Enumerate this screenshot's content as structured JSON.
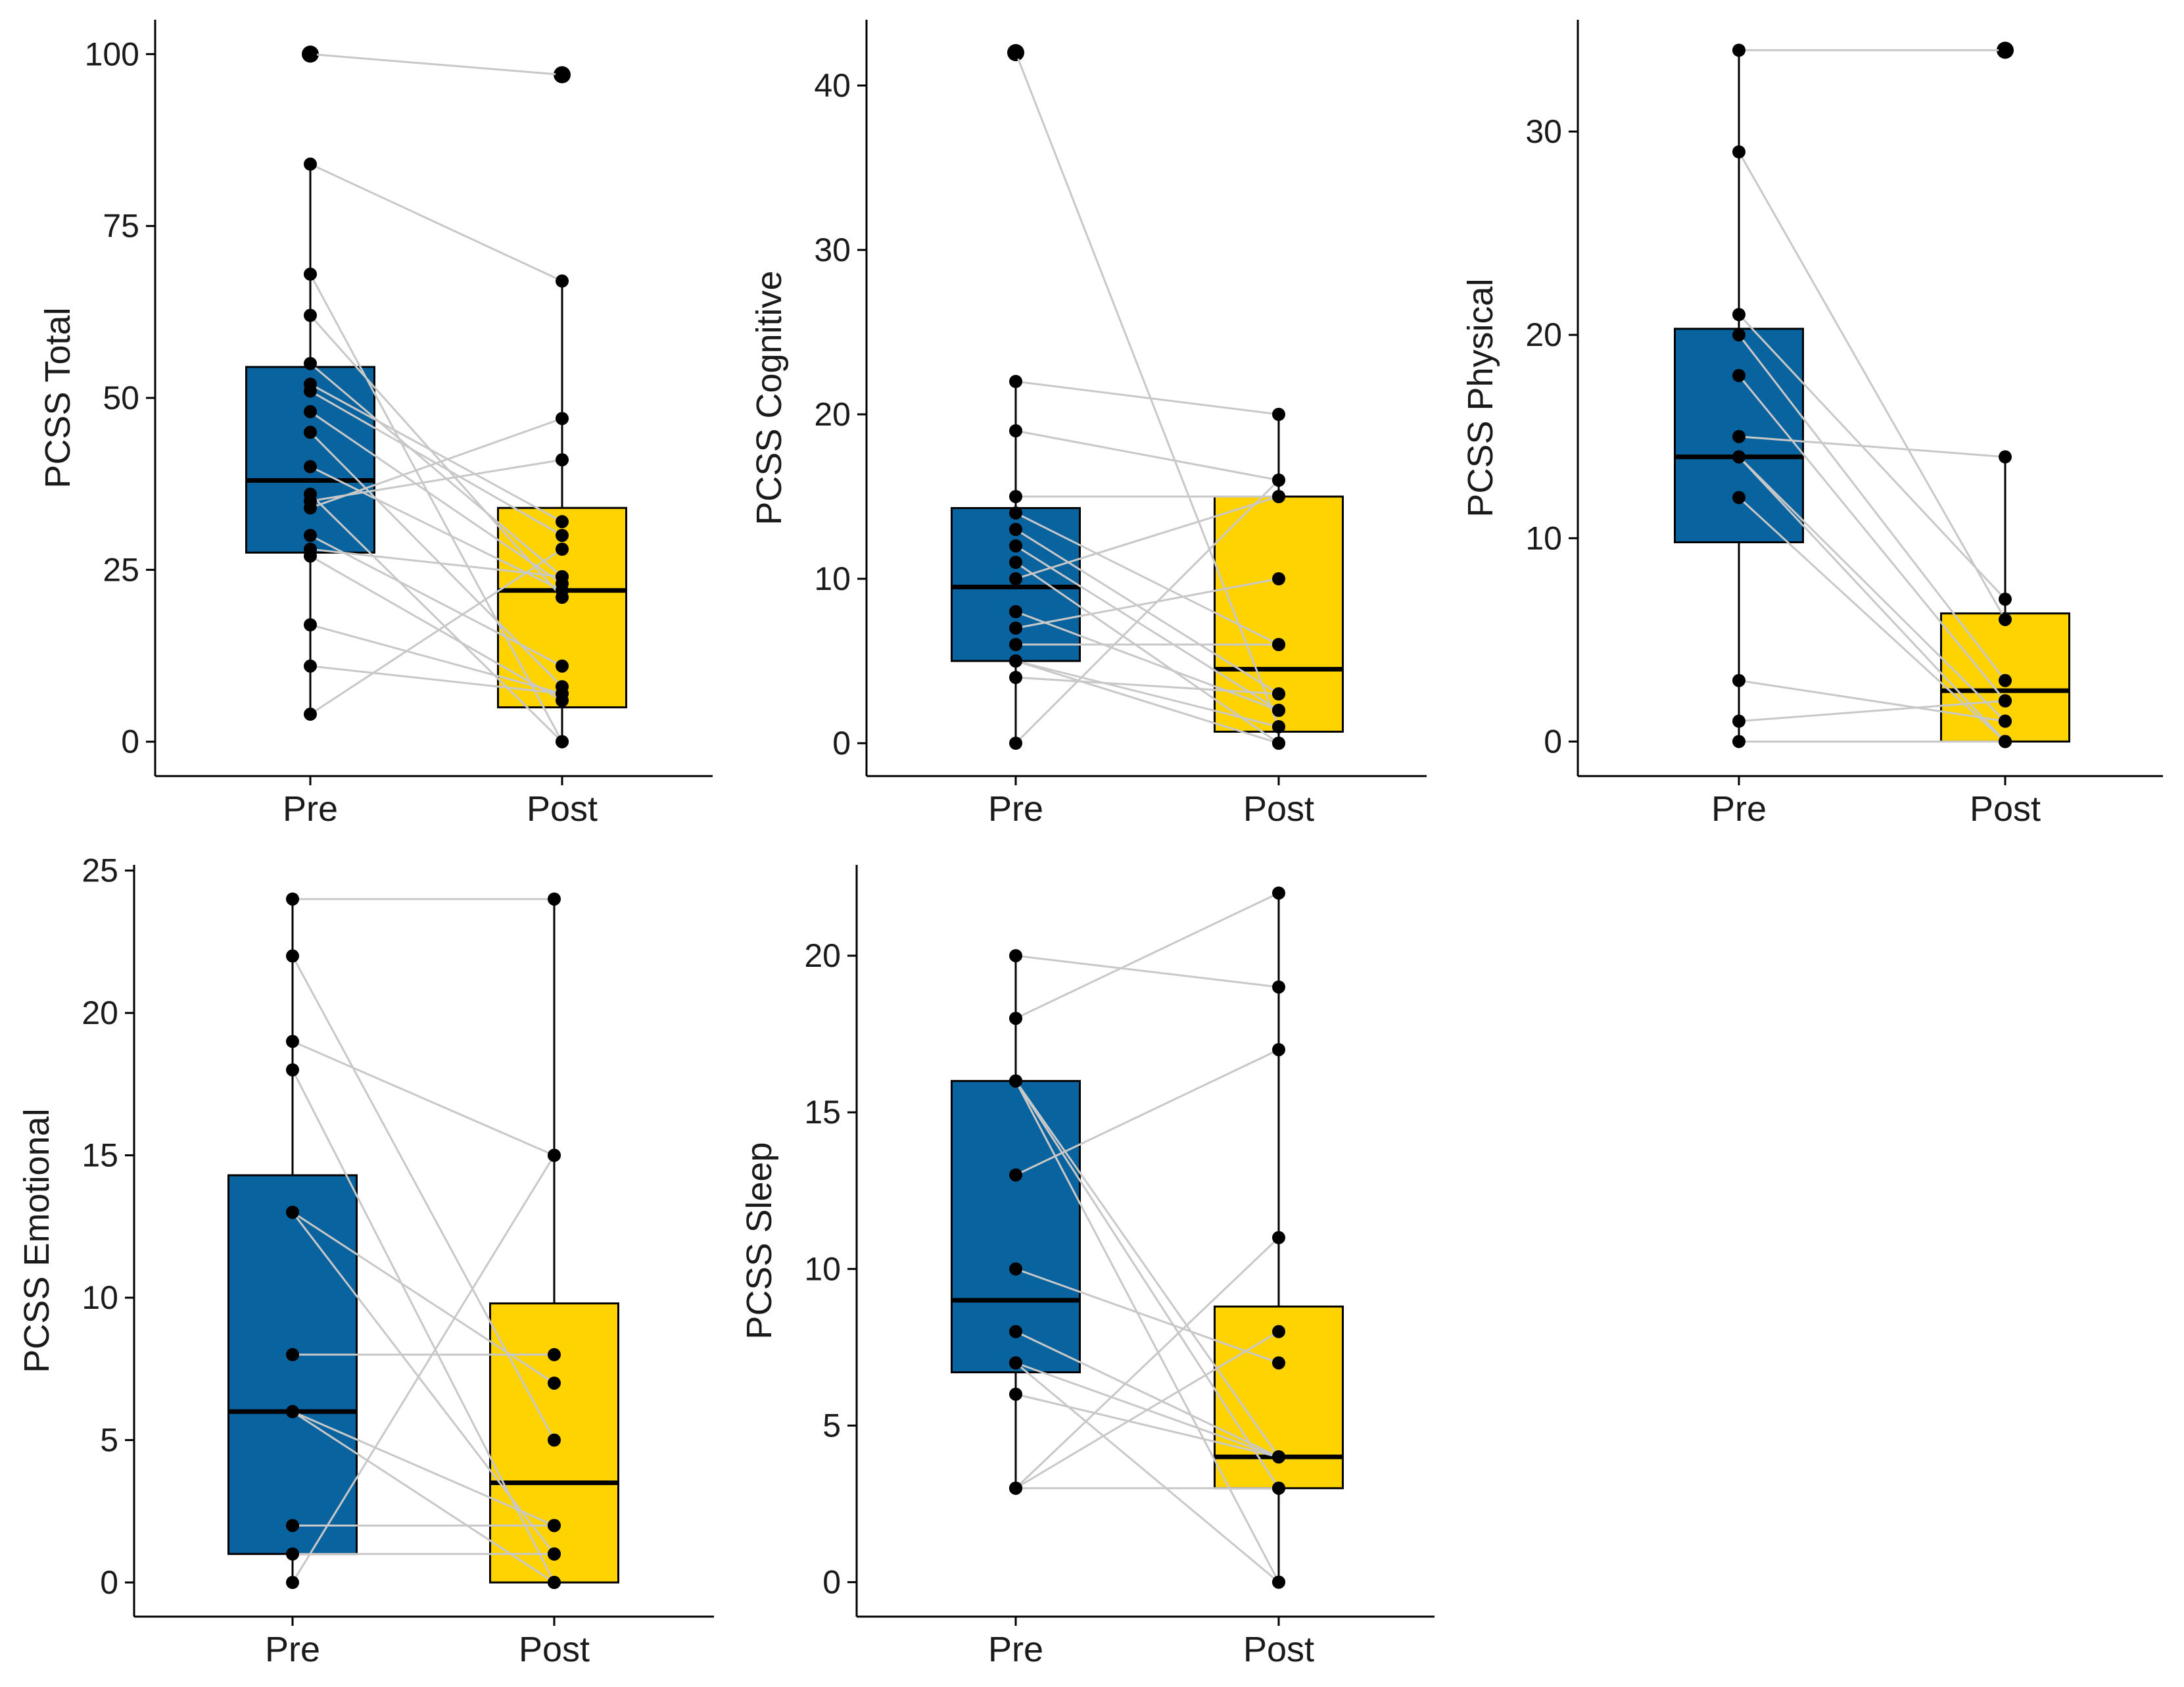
{
  "colors": {
    "pre": "#08639e",
    "post": "#ffd300",
    "paired_line": "#c8c8c8",
    "point": "#000000",
    "axis": "#000000"
  },
  "chart_data": [
    {
      "type": "box",
      "ylabel": "PCSS Total",
      "categories": [
        "Pre",
        "Post"
      ],
      "ylim": [
        -5,
        105
      ],
      "yticks": [
        0,
        25,
        50,
        75,
        100
      ],
      "boxes": [
        {
          "category": "Pre",
          "min": 4,
          "q1": 27.5,
          "median": 38,
          "q3": 54.5,
          "max": 84,
          "outliers": [
            100
          ]
        },
        {
          "category": "Post",
          "min": 0,
          "q1": 5,
          "median": 22,
          "q3": 34,
          "max": 67,
          "outliers": [
            97
          ]
        }
      ],
      "pairs": [
        [
          100,
          97
        ],
        [
          84,
          67
        ],
        [
          68,
          0
        ],
        [
          62,
          21
        ],
        [
          55,
          24
        ],
        [
          52,
          32
        ],
        [
          51,
          30
        ],
        [
          48,
          23
        ],
        [
          45,
          8
        ],
        [
          40,
          22
        ],
        [
          36,
          0
        ],
        [
          35,
          41
        ],
        [
          34,
          47
        ],
        [
          30,
          11
        ],
        [
          28,
          24
        ],
        [
          27,
          6
        ],
        [
          17,
          7
        ],
        [
          11,
          7
        ],
        [
          4,
          28
        ]
      ]
    },
    {
      "type": "box",
      "ylabel": "PCSS Cognitive",
      "categories": [
        "Pre",
        "Post"
      ],
      "ylim": [
        -2,
        44
      ],
      "yticks": [
        0,
        10,
        20,
        30,
        40
      ],
      "boxes": [
        {
          "category": "Pre",
          "min": 0,
          "q1": 5,
          "median": 9.5,
          "q3": 14.3,
          "max": 22,
          "outliers": [
            42
          ]
        },
        {
          "category": "Post",
          "min": 0,
          "q1": 0.7,
          "median": 4.5,
          "q3": 15,
          "max": 20,
          "outliers": []
        }
      ],
      "pairs": [
        [
          42,
          1
        ],
        [
          22,
          20
        ],
        [
          19,
          16
        ],
        [
          15,
          15
        ],
        [
          14,
          6
        ],
        [
          13,
          3
        ],
        [
          12,
          2
        ],
        [
          11,
          0
        ],
        [
          10,
          15
        ],
        [
          8,
          2
        ],
        [
          7,
          10
        ],
        [
          6,
          6
        ],
        [
          5,
          1
        ],
        [
          5,
          0
        ],
        [
          4,
          3
        ],
        [
          0,
          16
        ]
      ]
    },
    {
      "type": "box",
      "ylabel": "PCSS Physical",
      "categories": [
        "Pre",
        "Post"
      ],
      "ylim": [
        -1.7,
        35.5
      ],
      "yticks": [
        0,
        10,
        20,
        30
      ],
      "boxes": [
        {
          "category": "Pre",
          "min": 0,
          "q1": 9.8,
          "median": 14,
          "q3": 20.3,
          "max": 34,
          "outliers": []
        },
        {
          "category": "Post",
          "min": 0,
          "q1": 0,
          "median": 2.5,
          "q3": 6.3,
          "max": 14,
          "outliers": [
            34
          ]
        }
      ],
      "pairs": [
        [
          34,
          34
        ],
        [
          29,
          6
        ],
        [
          21,
          7
        ],
        [
          20,
          3
        ],
        [
          18,
          2
        ],
        [
          15,
          14
        ],
        [
          14,
          1
        ],
        [
          14,
          0
        ],
        [
          12,
          0
        ],
        [
          3,
          1
        ],
        [
          1,
          2
        ],
        [
          0,
          0
        ]
      ]
    },
    {
      "type": "box",
      "ylabel": "PCSS Emotional",
      "categories": [
        "Pre",
        "Post"
      ],
      "ylim": [
        -1.2,
        25.2
      ],
      "yticks": [
        0,
        5,
        10,
        15,
        20,
        25
      ],
      "boxes": [
        {
          "category": "Pre",
          "min": 0,
          "q1": 1,
          "median": 6,
          "q3": 14.3,
          "max": 24,
          "outliers": []
        },
        {
          "category": "Post",
          "min": 0,
          "q1": 0,
          "median": 3.5,
          "q3": 9.8,
          "max": 24,
          "outliers": []
        }
      ],
      "pairs": [
        [
          24,
          24
        ],
        [
          22,
          5
        ],
        [
          19,
          15
        ],
        [
          18,
          0
        ],
        [
          13,
          7
        ],
        [
          13,
          1
        ],
        [
          8,
          8
        ],
        [
          6,
          2
        ],
        [
          6,
          0
        ],
        [
          2,
          2
        ],
        [
          1,
          1
        ],
        [
          0,
          15
        ]
      ]
    },
    {
      "type": "box",
      "ylabel": "PCSS Sleep",
      "categories": [
        "Pre",
        "Post"
      ],
      "ylim": [
        -1.1,
        22.9
      ],
      "yticks": [
        0,
        5,
        10,
        15,
        20
      ],
      "boxes": [
        {
          "category": "Pre",
          "min": 3,
          "q1": 6.7,
          "median": 9,
          "q3": 16,
          "max": 20,
          "outliers": []
        },
        {
          "category": "Post",
          "min": 0,
          "q1": 3,
          "median": 4,
          "q3": 8.8,
          "max": 22,
          "outliers": []
        }
      ],
      "pairs": [
        [
          20,
          19
        ],
        [
          18,
          22
        ],
        [
          16,
          0
        ],
        [
          16,
          4
        ],
        [
          16,
          3
        ],
        [
          13,
          17
        ],
        [
          10,
          7
        ],
        [
          8,
          4
        ],
        [
          7,
          0
        ],
        [
          7,
          4
        ],
        [
          6,
          4
        ],
        [
          3,
          11
        ],
        [
          3,
          8
        ],
        [
          3,
          3
        ]
      ]
    }
  ]
}
